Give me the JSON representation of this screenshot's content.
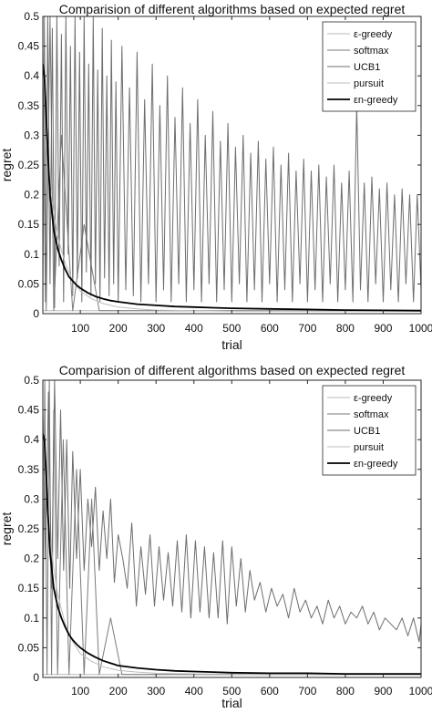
{
  "chart_data": [
    {
      "type": "line",
      "title": "Comparision of different algorithms based on expected regret",
      "xlabel": "trial",
      "ylabel": "regret",
      "xlim": [
        1,
        1000
      ],
      "ylim": [
        0,
        0.5
      ],
      "xticks": [
        100,
        200,
        300,
        400,
        500,
        600,
        700,
        800,
        900,
        1000
      ],
      "xtick_labels": [
        "100",
        "200",
        "300",
        "400",
        "500",
        "600",
        "700",
        "800",
        "900",
        "1000"
      ],
      "yticks": [
        0,
        0.05,
        0.1,
        0.15,
        0.2,
        0.25,
        0.3,
        0.35,
        0.4,
        0.45,
        0.5
      ],
      "ytick_labels": [
        "0",
        "0.05",
        "0.1",
        "0.15",
        "0.2",
        "0.25",
        "0.3",
        "0.35",
        "0.4",
        "0.45",
        "0.5"
      ],
      "legend_position": "top-right",
      "box": true,
      "series": [
        {
          "name": "ε-greedy",
          "color": "#b8b8b8",
          "width": 1,
          "x": [
            1,
            10,
            20,
            30,
            40,
            60,
            80,
            100,
            150,
            200,
            1000
          ],
          "values": [
            0.005,
            0.005,
            0.005,
            0.005,
            0.005,
            0.005,
            0.005,
            0.005,
            0.005,
            0.005,
            0.005
          ]
        },
        {
          "name": "softmax",
          "color": "#7a7a7a",
          "width": 1,
          "x": [
            1,
            5,
            10,
            20,
            30,
            50,
            80,
            110,
            150,
            200,
            250,
            1000
          ],
          "values": [
            0.005,
            0.5,
            0.005,
            0.5,
            0.005,
            0.3,
            0.005,
            0.15,
            0.005,
            0.005,
            0.005,
            0.005
          ]
        },
        {
          "name": "UCB1",
          "color": "#6e6e6e",
          "width": 1,
          "x": [
            1,
            8,
            14,
            20,
            26,
            32,
            38,
            44,
            50,
            56,
            62,
            68,
            74,
            80,
            86,
            92,
            98,
            104,
            110,
            116,
            122,
            128,
            134,
            140,
            146,
            152,
            158,
            164,
            170,
            176,
            182,
            188,
            194,
            200,
            210,
            220,
            230,
            240,
            250,
            260,
            270,
            280,
            290,
            300,
            310,
            320,
            330,
            340,
            350,
            360,
            370,
            380,
            390,
            400,
            410,
            420,
            430,
            440,
            450,
            460,
            470,
            480,
            490,
            500,
            510,
            520,
            530,
            540,
            550,
            560,
            570,
            580,
            590,
            600,
            610,
            620,
            630,
            640,
            650,
            660,
            670,
            680,
            690,
            700,
            710,
            720,
            730,
            740,
            750,
            760,
            770,
            780,
            790,
            800,
            810,
            820,
            830,
            840,
            850,
            860,
            870,
            880,
            890,
            900,
            910,
            920,
            930,
            940,
            950,
            960,
            970,
            980,
            990,
            1000
          ],
          "values": [
            0.45,
            0.02,
            0.5,
            0.05,
            0.48,
            0.01,
            0.5,
            0.08,
            0.47,
            0.02,
            0.5,
            0.1,
            0.45,
            0.03,
            0.5,
            0.06,
            0.44,
            0.02,
            0.5,
            0.07,
            0.42,
            0.03,
            0.5,
            0.05,
            0.41,
            0.02,
            0.48,
            0.06,
            0.4,
            0.03,
            0.46,
            0.05,
            0.39,
            0.02,
            0.45,
            0.04,
            0.38,
            0.03,
            0.44,
            0.02,
            0.36,
            0.05,
            0.42,
            0.02,
            0.35,
            0.04,
            0.4,
            0.02,
            0.33,
            0.05,
            0.38,
            0.02,
            0.32,
            0.04,
            0.36,
            0.02,
            0.3,
            0.05,
            0.34,
            0.02,
            0.29,
            0.04,
            0.32,
            0.02,
            0.28,
            0.05,
            0.3,
            0.02,
            0.27,
            0.04,
            0.29,
            0.02,
            0.26,
            0.05,
            0.28,
            0.02,
            0.25,
            0.04,
            0.27,
            0.02,
            0.24,
            0.05,
            0.26,
            0.02,
            0.24,
            0.04,
            0.25,
            0.02,
            0.23,
            0.05,
            0.25,
            0.02,
            0.22,
            0.04,
            0.24,
            0.02,
            0.35,
            0.04,
            0.22,
            0.02,
            0.23,
            0.05,
            0.21,
            0.02,
            0.22,
            0.04,
            0.2,
            0.02,
            0.21,
            0.05,
            0.2,
            0.02,
            0.2,
            0.04
          ]
        },
        {
          "name": "pursuit",
          "color": "#bdbdbd",
          "width": 1,
          "x": [
            1,
            10,
            20,
            40,
            60,
            80,
            100,
            130,
            160,
            200,
            250,
            300,
            400,
            500,
            600,
            800,
            1000
          ],
          "values": [
            0.42,
            0.3,
            0.21,
            0.13,
            0.085,
            0.055,
            0.038,
            0.025,
            0.017,
            0.011,
            0.008,
            0.006,
            0.005,
            0.004,
            0.004,
            0.004,
            0.004
          ]
        },
        {
          "name": "εn-greedy",
          "color": "#000000",
          "width": 1.8,
          "x": [
            1,
            5,
            10,
            15,
            20,
            30,
            40,
            50,
            60,
            70,
            80,
            90,
            100,
            120,
            140,
            160,
            180,
            200,
            250,
            300,
            350,
            400,
            450,
            500,
            600,
            700,
            800,
            900,
            1000
          ],
          "values": [
            0.42,
            0.4,
            0.33,
            0.26,
            0.2,
            0.14,
            0.11,
            0.09,
            0.075,
            0.062,
            0.055,
            0.048,
            0.043,
            0.035,
            0.029,
            0.025,
            0.022,
            0.02,
            0.016,
            0.014,
            0.012,
            0.011,
            0.01,
            0.009,
            0.008,
            0.007,
            0.006,
            0.0055,
            0.005
          ]
        }
      ]
    },
    {
      "type": "line",
      "title": "Comparision of different algorithms based on expected regret",
      "xlabel": "trial",
      "ylabel": "regret",
      "xlim": [
        1,
        1000
      ],
      "ylim": [
        0,
        0.5
      ],
      "xticks": [
        100,
        200,
        300,
        400,
        500,
        600,
        700,
        800,
        900,
        1000
      ],
      "xtick_labels": [
        "100",
        "200",
        "300",
        "400",
        "500",
        "600",
        "700",
        "800",
        "900",
        "1000"
      ],
      "yticks": [
        0,
        0.05,
        0.1,
        0.15,
        0.2,
        0.25,
        0.3,
        0.35,
        0.4,
        0.45,
        0.5
      ],
      "ytick_labels": [
        "0",
        "0.05",
        "0.1",
        "0.15",
        "0.2",
        "0.25",
        "0.3",
        "0.35",
        "0.4",
        "0.45",
        "0.5"
      ],
      "legend_position": "top-right",
      "box": true,
      "series": [
        {
          "name": "ε-greedy",
          "color": "#b8b8b8",
          "width": 1,
          "x": [
            1,
            10,
            20,
            40,
            60,
            100,
            200,
            1000
          ],
          "values": [
            0.005,
            0.005,
            0.005,
            0.005,
            0.005,
            0.005,
            0.005,
            0.005
          ]
        },
        {
          "name": "softmax",
          "color": "#7a7a7a",
          "width": 1,
          "x": [
            1,
            6,
            12,
            18,
            24,
            30,
            40,
            55,
            70,
            90,
            110,
            130,
            150,
            180,
            210,
            1000
          ],
          "values": [
            0.005,
            0.5,
            0.005,
            0.5,
            0.005,
            0.45,
            0.005,
            0.4,
            0.005,
            0.35,
            0.005,
            0.3,
            0.005,
            0.1,
            0.005,
            0.005
          ]
        },
        {
          "name": "UCB1",
          "color": "#6e6e6e",
          "width": 1,
          "x": [
            1,
            8,
            16,
            24,
            32,
            40,
            48,
            56,
            64,
            72,
            80,
            90,
            100,
            110,
            120,
            130,
            140,
            150,
            160,
            170,
            180,
            190,
            200,
            212,
            224,
            236,
            248,
            260,
            272,
            284,
            296,
            308,
            320,
            332,
            344,
            356,
            368,
            380,
            392,
            404,
            416,
            428,
            440,
            452,
            464,
            476,
            488,
            500,
            512,
            524,
            536,
            548,
            560,
            575,
            590,
            605,
            620,
            635,
            650,
            665,
            680,
            695,
            710,
            725,
            740,
            755,
            770,
            785,
            800,
            815,
            830,
            845,
            860,
            875,
            890,
            905,
            920,
            935,
            950,
            965,
            980,
            995,
            1000
          ],
          "values": [
            0.45,
            0.2,
            0.48,
            0.15,
            0.5,
            0.2,
            0.45,
            0.18,
            0.4,
            0.15,
            0.38,
            0.2,
            0.35,
            0.18,
            0.3,
            0.22,
            0.32,
            0.18,
            0.28,
            0.2,
            0.3,
            0.16,
            0.24,
            0.2,
            0.15,
            0.26,
            0.12,
            0.22,
            0.14,
            0.24,
            0.12,
            0.22,
            0.13,
            0.21,
            0.12,
            0.23,
            0.11,
            0.24,
            0.1,
            0.23,
            0.11,
            0.22,
            0.1,
            0.21,
            0.1,
            0.23,
            0.09,
            0.22,
            0.12,
            0.2,
            0.11,
            0.18,
            0.13,
            0.16,
            0.11,
            0.15,
            0.12,
            0.14,
            0.1,
            0.15,
            0.11,
            0.13,
            0.1,
            0.12,
            0.09,
            0.13,
            0.1,
            0.12,
            0.09,
            0.11,
            0.1,
            0.12,
            0.09,
            0.11,
            0.08,
            0.1,
            0.09,
            0.08,
            0.1,
            0.07,
            0.1,
            0.06,
            0.09
          ]
        },
        {
          "name": "pursuit",
          "color": "#bdbdbd",
          "width": 1,
          "x": [
            1,
            10,
            20,
            40,
            60,
            80,
            100,
            130,
            160,
            200,
            250,
            300,
            400,
            600,
            800,
            1000
          ],
          "values": [
            0.42,
            0.32,
            0.23,
            0.14,
            0.09,
            0.06,
            0.04,
            0.027,
            0.018,
            0.012,
            0.009,
            0.007,
            0.006,
            0.005,
            0.005,
            0.005
          ]
        },
        {
          "name": "εn-greedy",
          "color": "#000000",
          "width": 1.8,
          "x": [
            1,
            5,
            10,
            15,
            20,
            30,
            40,
            50,
            60,
            70,
            80,
            90,
            100,
            120,
            140,
            160,
            180,
            200,
            250,
            300,
            350,
            400,
            450,
            500,
            600,
            700,
            800,
            900,
            1000
          ],
          "values": [
            0.41,
            0.4,
            0.34,
            0.27,
            0.21,
            0.15,
            0.12,
            0.1,
            0.085,
            0.072,
            0.063,
            0.056,
            0.05,
            0.041,
            0.034,
            0.028,
            0.024,
            0.02,
            0.016,
            0.013,
            0.011,
            0.01,
            0.009,
            0.008,
            0.007,
            0.007,
            0.006,
            0.006,
            0.006
          ]
        }
      ]
    }
  ]
}
